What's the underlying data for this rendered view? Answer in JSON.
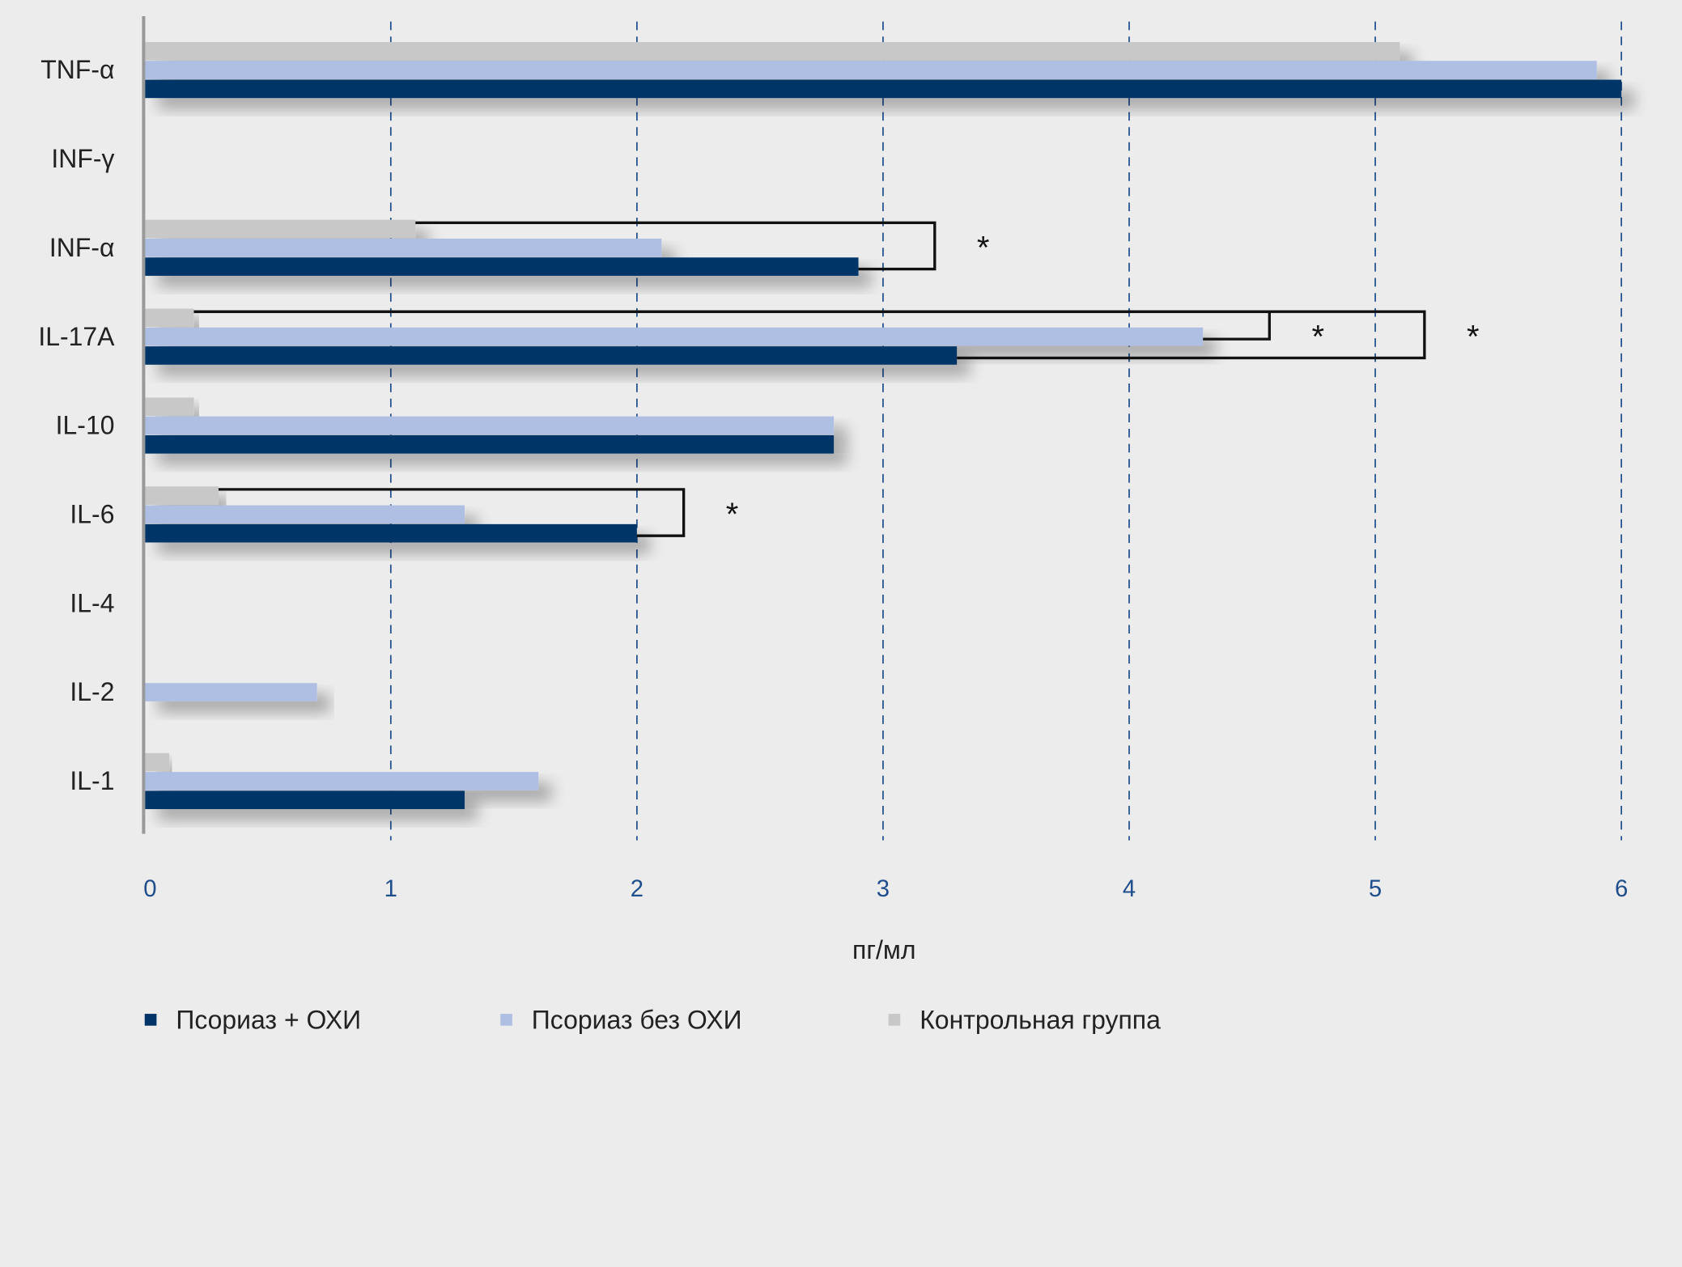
{
  "chart_data": {
    "type": "bar",
    "orientation": "horizontal",
    "title": "",
    "xlabel": "пг/мл",
    "ylabel": "",
    "xlim": [
      0,
      6
    ],
    "xticks": [
      "0",
      "1",
      "2",
      "3",
      "4",
      "5",
      "6"
    ],
    "grid": "vertical dashed",
    "legend_position": "bottom-left",
    "categories": [
      "TNF-α",
      "INF-γ",
      "INF-α",
      "IL-17A",
      "IL-10",
      "IL-6",
      "IL-4",
      "IL-2",
      "IL-1"
    ],
    "series": [
      {
        "name": "Контрольная группа",
        "color": "#c8c8c8",
        "values": [
          5.1,
          0,
          1.1,
          0.2,
          0.2,
          0.3,
          0,
          0,
          0.1
        ]
      },
      {
        "name": "Псориаз без ОХИ",
        "color": "#aebfe3",
        "values": [
          5.9,
          0,
          2.1,
          4.3,
          2.8,
          1.3,
          0,
          0.7,
          1.6
        ]
      },
      {
        "name": "Псориаз + ОХИ",
        "color": "#003468",
        "values": [
          6.0,
          0,
          2.9,
          3.3,
          2.8,
          2.0,
          0,
          0,
          1.3
        ]
      }
    ],
    "legend": [
      "Псориаз + ОХИ",
      "Псориаз без ОХИ",
      "Контрольная группа"
    ],
    "legend_colors": [
      "#003468",
      "#aebfe3",
      "#c8c8c8"
    ],
    "significance": [
      {
        "category": "INF-α",
        "from": "Контрольная группа",
        "to": "Псориаз + ОХИ",
        "label": "*",
        "bracket_at": 3.21
      },
      {
        "category": "IL-17A",
        "from": "Контрольная группа",
        "to": "Псориаз без ОХИ",
        "label": "*",
        "bracket_at": 4.57
      },
      {
        "category": "IL-17A",
        "from": "Контрольная группа",
        "to": "Псориаз + ОХИ",
        "label": "*",
        "bracket_at": 5.2
      },
      {
        "category": "IL-6",
        "from": "Контрольная группа",
        "to": "Псориаз + ОХИ",
        "label": "*",
        "bracket_at": 2.19
      }
    ]
  }
}
